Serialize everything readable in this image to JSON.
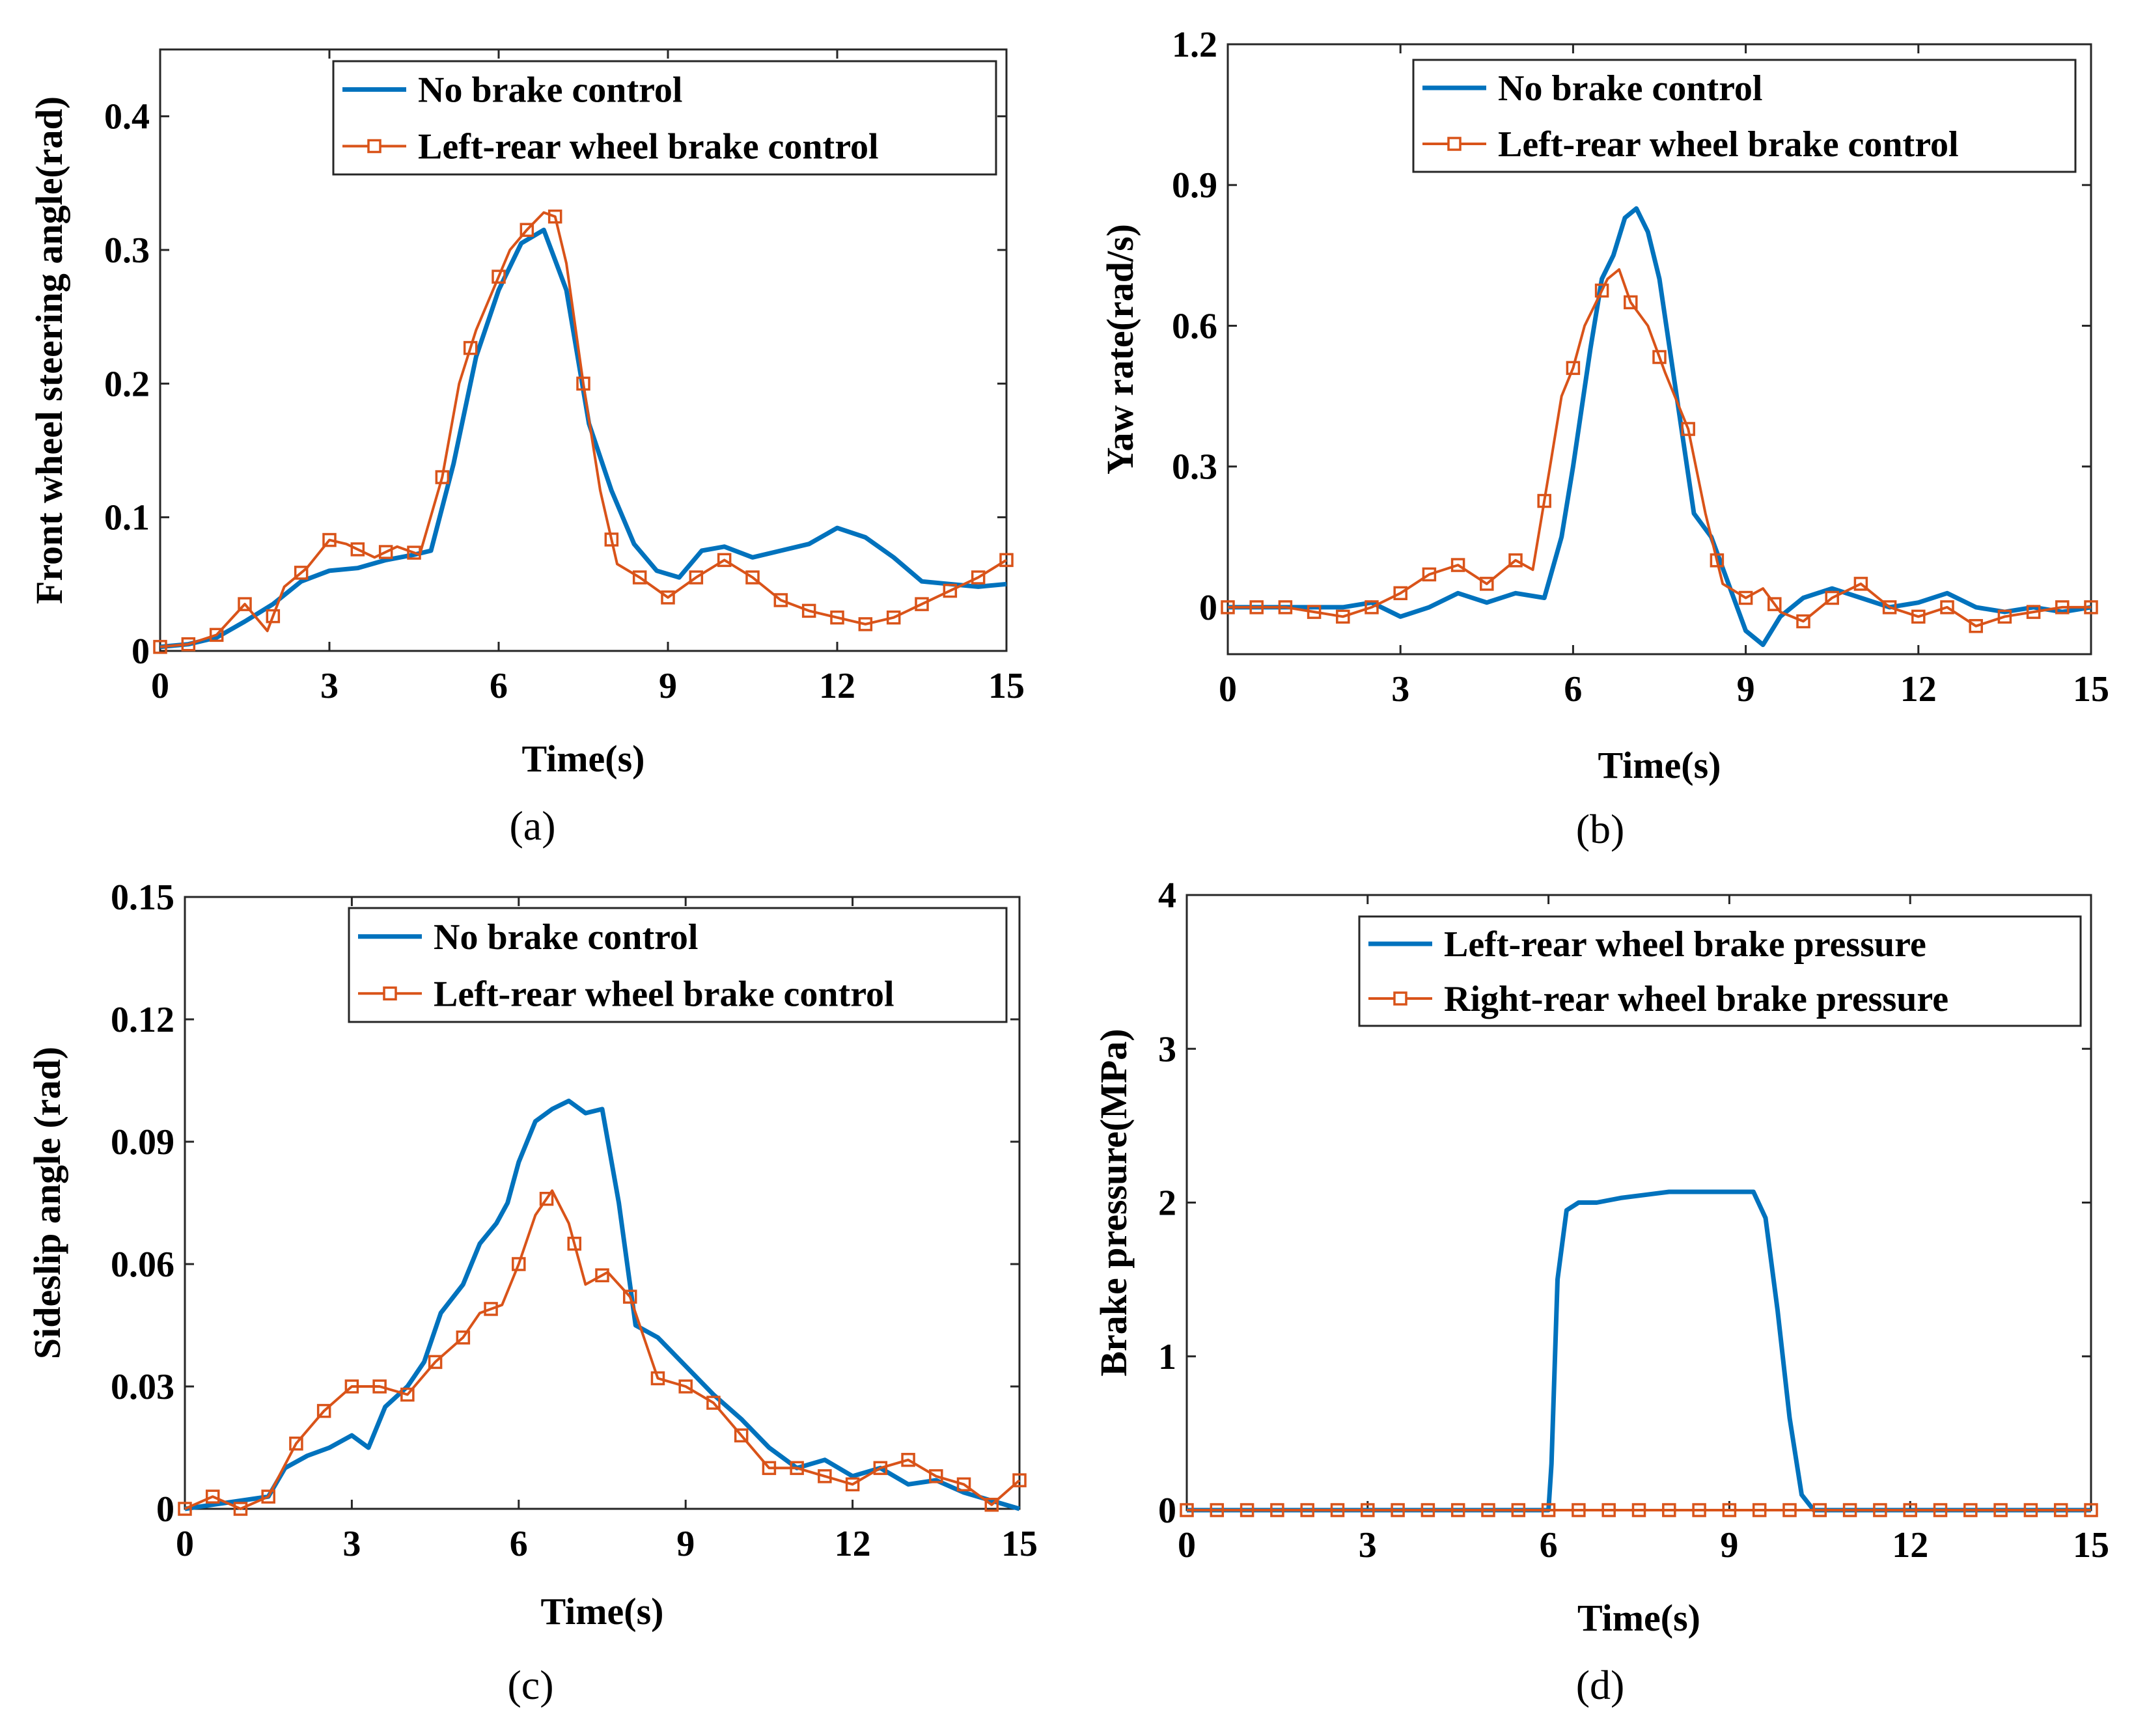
{
  "colors": {
    "blue": "#0072BD",
    "orange": "#D95319",
    "axis": "#262626"
  },
  "chart_data": [
    {
      "id": "a",
      "type": "line",
      "caption": "(a)",
      "xlabel": "Time(s)",
      "ylabel": "Front wheel steering angle(rad)",
      "xlim": [
        0,
        15
      ],
      "ylim": [
        0,
        0.45
      ],
      "xticks": [
        0,
        3,
        6,
        9,
        12,
        15
      ],
      "xtick_labels": [
        "0",
        "3",
        "6",
        "9",
        "12",
        "15"
      ],
      "yticks": [
        0,
        0.1,
        0.2,
        0.3,
        0.4
      ],
      "ytick_labels": [
        "0",
        "0.1",
        "0.2",
        "0.3",
        "0.4"
      ],
      "legend_position": "top-right",
      "series": [
        {
          "name": "No brake control",
          "color": "#0072BD",
          "marker": "none",
          "x": [
            0,
            0.5,
            1,
            1.5,
            2,
            2.5,
            3,
            3.5,
            4,
            4.5,
            4.8,
            5.2,
            5.6,
            6,
            6.4,
            6.8,
            7.2,
            7.6,
            8,
            8.4,
            8.8,
            9.2,
            9.6,
            10,
            10.5,
            11,
            11.5,
            12,
            12.5,
            13,
            13.5,
            14,
            14.5,
            15
          ],
          "y": [
            0.003,
            0.005,
            0.01,
            0.022,
            0.035,
            0.052,
            0.06,
            0.062,
            0.068,
            0.072,
            0.075,
            0.14,
            0.22,
            0.27,
            0.305,
            0.315,
            0.27,
            0.17,
            0.12,
            0.08,
            0.06,
            0.055,
            0.075,
            0.078,
            0.07,
            0.075,
            0.08,
            0.092,
            0.085,
            0.07,
            0.052,
            0.05,
            0.048,
            0.05
          ]
        },
        {
          "name": "Left-rear wheel brake control",
          "color": "#D95319",
          "marker": "square",
          "x": [
            0,
            0.5,
            1,
            1.5,
            1.9,
            2.2,
            2.6,
            3,
            3.3,
            3.8,
            4.2,
            4.6,
            5,
            5.3,
            5.6,
            5.9,
            6.2,
            6.5,
            6.8,
            7,
            7.2,
            7.5,
            7.8,
            8.1,
            8.5,
            9,
            9.5,
            10,
            10.5,
            11,
            11.5,
            12,
            12.5,
            13,
            13.5,
            14,
            14.5,
            15
          ],
          "y": [
            0.003,
            0.005,
            0.012,
            0.035,
            0.015,
            0.048,
            0.062,
            0.083,
            0.08,
            0.07,
            0.078,
            0.072,
            0.13,
            0.2,
            0.24,
            0.27,
            0.3,
            0.315,
            0.328,
            0.325,
            0.29,
            0.2,
            0.12,
            0.065,
            0.055,
            0.04,
            0.055,
            0.068,
            0.055,
            0.038,
            0.03,
            0.025,
            0.02,
            0.025,
            0.035,
            0.045,
            0.055,
            0.068
          ]
        }
      ]
    },
    {
      "id": "b",
      "type": "line",
      "caption": "(b)",
      "xlabel": "Time(s)",
      "ylabel": "Yaw rate(rad/s)",
      "xlim": [
        0,
        15
      ],
      "ylim": [
        -0.1,
        1.2
      ],
      "xticks": [
        0,
        3,
        6,
        9,
        12,
        15
      ],
      "xtick_labels": [
        "0",
        "3",
        "6",
        "9",
        "12",
        "15"
      ],
      "yticks": [
        0,
        0.3,
        0.6,
        0.9,
        1.2
      ],
      "ytick_labels": [
        "0",
        "0.3",
        "0.6",
        "0.9",
        "1.2"
      ],
      "legend_position": "top-right",
      "series": [
        {
          "name": "No brake control",
          "color": "#0072BD",
          "marker": "none",
          "x": [
            0,
            1,
            2,
            2.5,
            3,
            3.5,
            4,
            4.5,
            5,
            5.5,
            5.8,
            6,
            6.3,
            6.5,
            6.7,
            6.9,
            7.1,
            7.3,
            7.5,
            7.8,
            8.1,
            8.4,
            8.7,
            9,
            9.3,
            9.6,
            10,
            10.5,
            11,
            11.5,
            12,
            12.5,
            13,
            13.5,
            14,
            14.5,
            15
          ],
          "y": [
            0,
            0,
            0,
            0.01,
            -0.02,
            0,
            0.03,
            0.01,
            0.03,
            0.02,
            0.15,
            0.3,
            0.55,
            0.7,
            0.75,
            0.83,
            0.85,
            0.8,
            0.7,
            0.45,
            0.2,
            0.15,
            0.05,
            -0.05,
            -0.08,
            -0.02,
            0.02,
            0.04,
            0.02,
            0,
            0.01,
            0.03,
            0,
            -0.01,
            0,
            -0.01,
            0
          ]
        },
        {
          "name": "Left-rear wheel brake control",
          "color": "#D95319",
          "marker": "square",
          "x": [
            0,
            1,
            2,
            2.5,
            3,
            3.5,
            4,
            4.5,
            5,
            5.3,
            5.6,
            5.8,
            6,
            6.2,
            6.4,
            6.6,
            6.8,
            7,
            7.3,
            7.6,
            8,
            8.3,
            8.6,
            9,
            9.3,
            9.6,
            10,
            10.5,
            11,
            11.5,
            12,
            12.5,
            13,
            13.5,
            14,
            14.5,
            15
          ],
          "y": [
            0,
            0,
            -0.02,
            0,
            0.03,
            0.07,
            0.09,
            0.05,
            0.1,
            0.08,
            0.3,
            0.45,
            0.51,
            0.6,
            0.65,
            0.7,
            0.72,
            0.65,
            0.6,
            0.5,
            0.38,
            0.2,
            0.05,
            0.02,
            0.04,
            -0.01,
            -0.03,
            0.02,
            0.05,
            0,
            -0.02,
            0,
            -0.04,
            -0.02,
            -0.01,
            0,
            0
          ]
        }
      ]
    },
    {
      "id": "c",
      "type": "line",
      "caption": "(c)",
      "xlabel": "Time(s)",
      "ylabel": "Sideslip angle (rad)",
      "xlim": [
        0,
        15
      ],
      "ylim": [
        0,
        0.15
      ],
      "xticks": [
        0,
        3,
        6,
        9,
        12,
        15
      ],
      "xtick_labels": [
        "0",
        "3",
        "6",
        "9",
        "12",
        "15"
      ],
      "yticks": [
        0,
        0.03,
        0.06,
        0.09,
        0.12,
        0.15
      ],
      "ytick_labels": [
        "0",
        "0.03",
        "0.06",
        "0.09",
        "0.12",
        "0.15"
      ],
      "legend_position": "top-right",
      "series": [
        {
          "name": "No brake control",
          "color": "#0072BD",
          "marker": "none",
          "x": [
            0,
            0.5,
            1,
            1.5,
            1.8,
            2.2,
            2.6,
            3,
            3.3,
            3.6,
            4,
            4.3,
            4.6,
            5,
            5.3,
            5.6,
            5.8,
            6,
            6.3,
            6.6,
            6.9,
            7.2,
            7.5,
            7.8,
            8.1,
            8.5,
            9,
            9.5,
            10,
            10.5,
            11,
            11.5,
            12,
            12.5,
            13,
            13.5,
            14,
            14.5,
            15
          ],
          "y": [
            0,
            0.001,
            0.002,
            0.003,
            0.01,
            0.013,
            0.015,
            0.018,
            0.015,
            0.025,
            0.03,
            0.036,
            0.048,
            0.055,
            0.065,
            0.07,
            0.075,
            0.085,
            0.095,
            0.098,
            0.1,
            0.097,
            0.098,
            0.075,
            0.045,
            0.042,
            0.035,
            0.028,
            0.022,
            0.015,
            0.01,
            0.012,
            0.008,
            0.01,
            0.006,
            0.007,
            0.004,
            0.002,
            0
          ]
        },
        {
          "name": "Left-rear wheel brake control",
          "color": "#D95319",
          "marker": "square",
          "x": [
            0,
            0.5,
            1,
            1.5,
            2,
            2.5,
            3,
            3.5,
            4,
            4.5,
            5,
            5.3,
            5.7,
            6,
            6.3,
            6.6,
            6.9,
            7.2,
            7.6,
            8,
            8.5,
            9,
            9.5,
            10,
            10.5,
            11,
            11.5,
            12,
            12.5,
            13,
            13.5,
            14,
            14.5,
            15
          ],
          "y": [
            0,
            0.003,
            0,
            0.003,
            0.016,
            0.024,
            0.03,
            0.03,
            0.028,
            0.036,
            0.042,
            0.048,
            0.05,
            0.06,
            0.072,
            0.078,
            0.07,
            0.055,
            0.058,
            0.052,
            0.032,
            0.03,
            0.026,
            0.018,
            0.01,
            0.01,
            0.008,
            0.006,
            0.01,
            0.012,
            0.008,
            0.006,
            0.001,
            0.007
          ]
        }
      ]
    },
    {
      "id": "d",
      "type": "line",
      "caption": "(d)",
      "xlabel": "Time(s)",
      "ylabel": "Brake pressure(MPa)",
      "xlim": [
        0,
        15
      ],
      "ylim": [
        0,
        4
      ],
      "xticks": [
        0,
        3,
        6,
        9,
        12,
        15
      ],
      "xtick_labels": [
        "0",
        "3",
        "6",
        "9",
        "12",
        "15"
      ],
      "yticks": [
        0,
        1,
        2,
        3,
        4
      ],
      "ytick_labels": [
        "0",
        "1",
        "2",
        "3",
        "4"
      ],
      "legend_position": "top-right",
      "series": [
        {
          "name": "Left-rear wheel brake pressure",
          "color": "#0072BD",
          "marker": "none",
          "x": [
            0,
            6.0,
            6.05,
            6.15,
            6.3,
            6.5,
            6.8,
            7.2,
            7.6,
            8,
            8.5,
            9,
            9.4,
            9.6,
            9.8,
            10,
            10.2,
            10.4,
            10.6,
            15
          ],
          "y": [
            0,
            0,
            0.3,
            1.5,
            1.95,
            2.0,
            2.0,
            2.03,
            2.05,
            2.07,
            2.07,
            2.07,
            2.07,
            1.9,
            1.3,
            0.6,
            0.1,
            0,
            0,
            0
          ]
        },
        {
          "name": "Right-rear wheel brake pressure",
          "color": "#D95319",
          "marker": "square",
          "x": [
            0,
            15
          ],
          "y": [
            0,
            0
          ]
        }
      ]
    }
  ]
}
